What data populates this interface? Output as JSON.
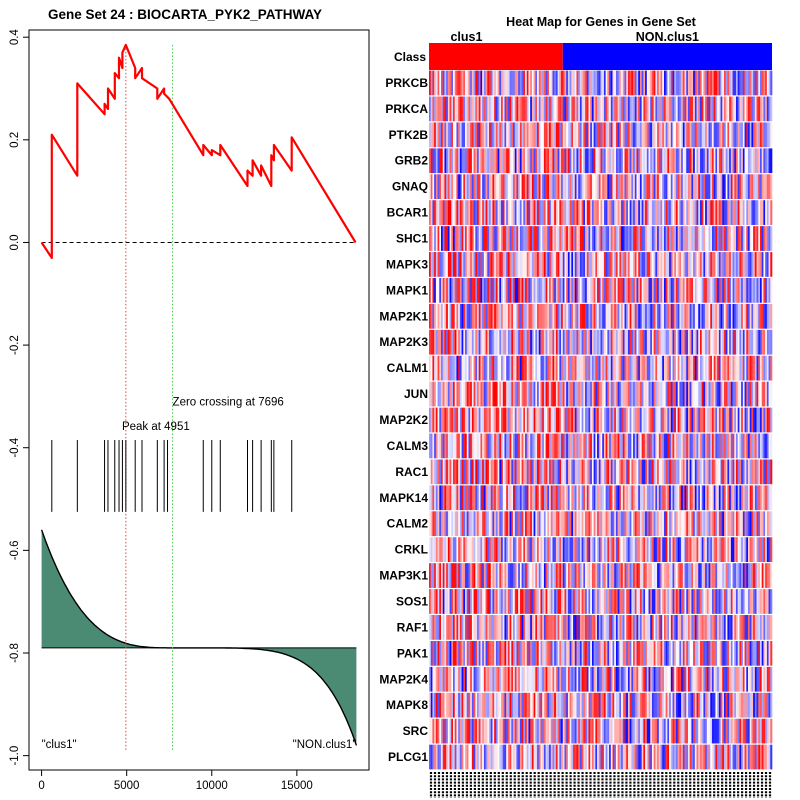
{
  "chart_data": [
    {
      "type": "line",
      "title": "Gene Set  24 : BIOCARTA_PYK2_PATHWAY",
      "xlim": [
        0,
        18500
      ],
      "ylim": [
        -1.0,
        0.4
      ],
      "x_ticks": [
        0,
        5000,
        10000,
        15000
      ],
      "x_tick_labels": [
        "0",
        "5000",
        "10000",
        "15000"
      ],
      "y_ticks": [
        0.4,
        0.2,
        0.0,
        -0.2,
        -0.4,
        -0.6,
        -0.8,
        -1.0
      ],
      "y_tick_labels": [
        "0.4",
        "0.2",
        "0.0",
        "-0.2",
        "-0.4",
        "-0.6",
        "-0.8",
        "-1.0"
      ],
      "series": [
        {
          "name": "running enrichment score",
          "color": "#ff0000",
          "x": [
            0,
            600,
            600,
            2100,
            2100,
            3700,
            3700,
            3900,
            3900,
            4300,
            4300,
            4550,
            4550,
            4750,
            4750,
            4951,
            5500,
            5500,
            5900,
            5900,
            6800,
            6800,
            7200,
            7200,
            7500,
            9500,
            9500,
            10000,
            10000,
            10500,
            10500,
            12100,
            12100,
            12400,
            12400,
            12900,
            12900,
            13500,
            13500,
            13650,
            13650,
            14700,
            14700,
            18450
          ],
          "y": [
            0.0,
            -0.03,
            0.21,
            0.13,
            0.31,
            0.25,
            0.27,
            0.26,
            0.3,
            0.28,
            0.33,
            0.32,
            0.36,
            0.34,
            0.37,
            0.385,
            0.34,
            0.32,
            0.34,
            0.32,
            0.3,
            0.28,
            0.3,
            0.29,
            0.28,
            0.17,
            0.19,
            0.17,
            0.18,
            0.17,
            0.19,
            0.11,
            0.14,
            0.13,
            0.16,
            0.13,
            0.15,
            0.11,
            0.17,
            0.16,
            0.19,
            0.14,
            0.205,
            0.0
          ]
        }
      ],
      "zero_line": 0.0,
      "peak": {
        "x": 4951,
        "label": "Peak at 4951",
        "color": "#dd4444"
      },
      "zero_crossing": {
        "x": 7696,
        "label": "Zero crossing at 7696",
        "color": "#44cc44"
      },
      "hit_positions": [
        600,
        2100,
        3700,
        3900,
        4300,
        4550,
        4750,
        4951,
        5500,
        5900,
        6800,
        7200,
        7400,
        9500,
        10000,
        10500,
        12100,
        12400,
        12900,
        13500,
        13650,
        14700
      ],
      "ranked_metric": {
        "fill_color": "#4b8b74",
        "baseline": -0.79,
        "top": -0.56,
        "bottom": -0.98
      },
      "end_labels": {
        "left": "\"clus1\"",
        "right": "\"NON.clus1\""
      }
    },
    {
      "type": "heatmap",
      "title": "Heat Map for Genes in Gene Set",
      "class_row_label": "Class",
      "classes": [
        {
          "name": "clus1",
          "color": "#ff0000",
          "fraction": 0.39
        },
        {
          "name": "NON.clus1",
          "color": "#0000ff",
          "fraction": 0.61
        }
      ],
      "genes": [
        "PRKCB",
        "PRKCA",
        "PTK2B",
        "GRB2",
        "GNAQ",
        "BCAR1",
        "SHC1",
        "MAPK3",
        "MAPK1",
        "MAP2K1",
        "MAP2K3",
        "CALM1",
        "JUN",
        "MAP2K2",
        "CALM3",
        "RAC1",
        "MAPK14",
        "CALM2",
        "CRKL",
        "MAP3K1",
        "SOS1",
        "RAF1",
        "PAK1",
        "MAP2K4",
        "MAPK8",
        "SRC",
        "PLCG1"
      ],
      "sample_columns": 200,
      "low_color": "#0000ff",
      "mid_color": "#ffffff",
      "high_color": "#ff0000"
    }
  ]
}
